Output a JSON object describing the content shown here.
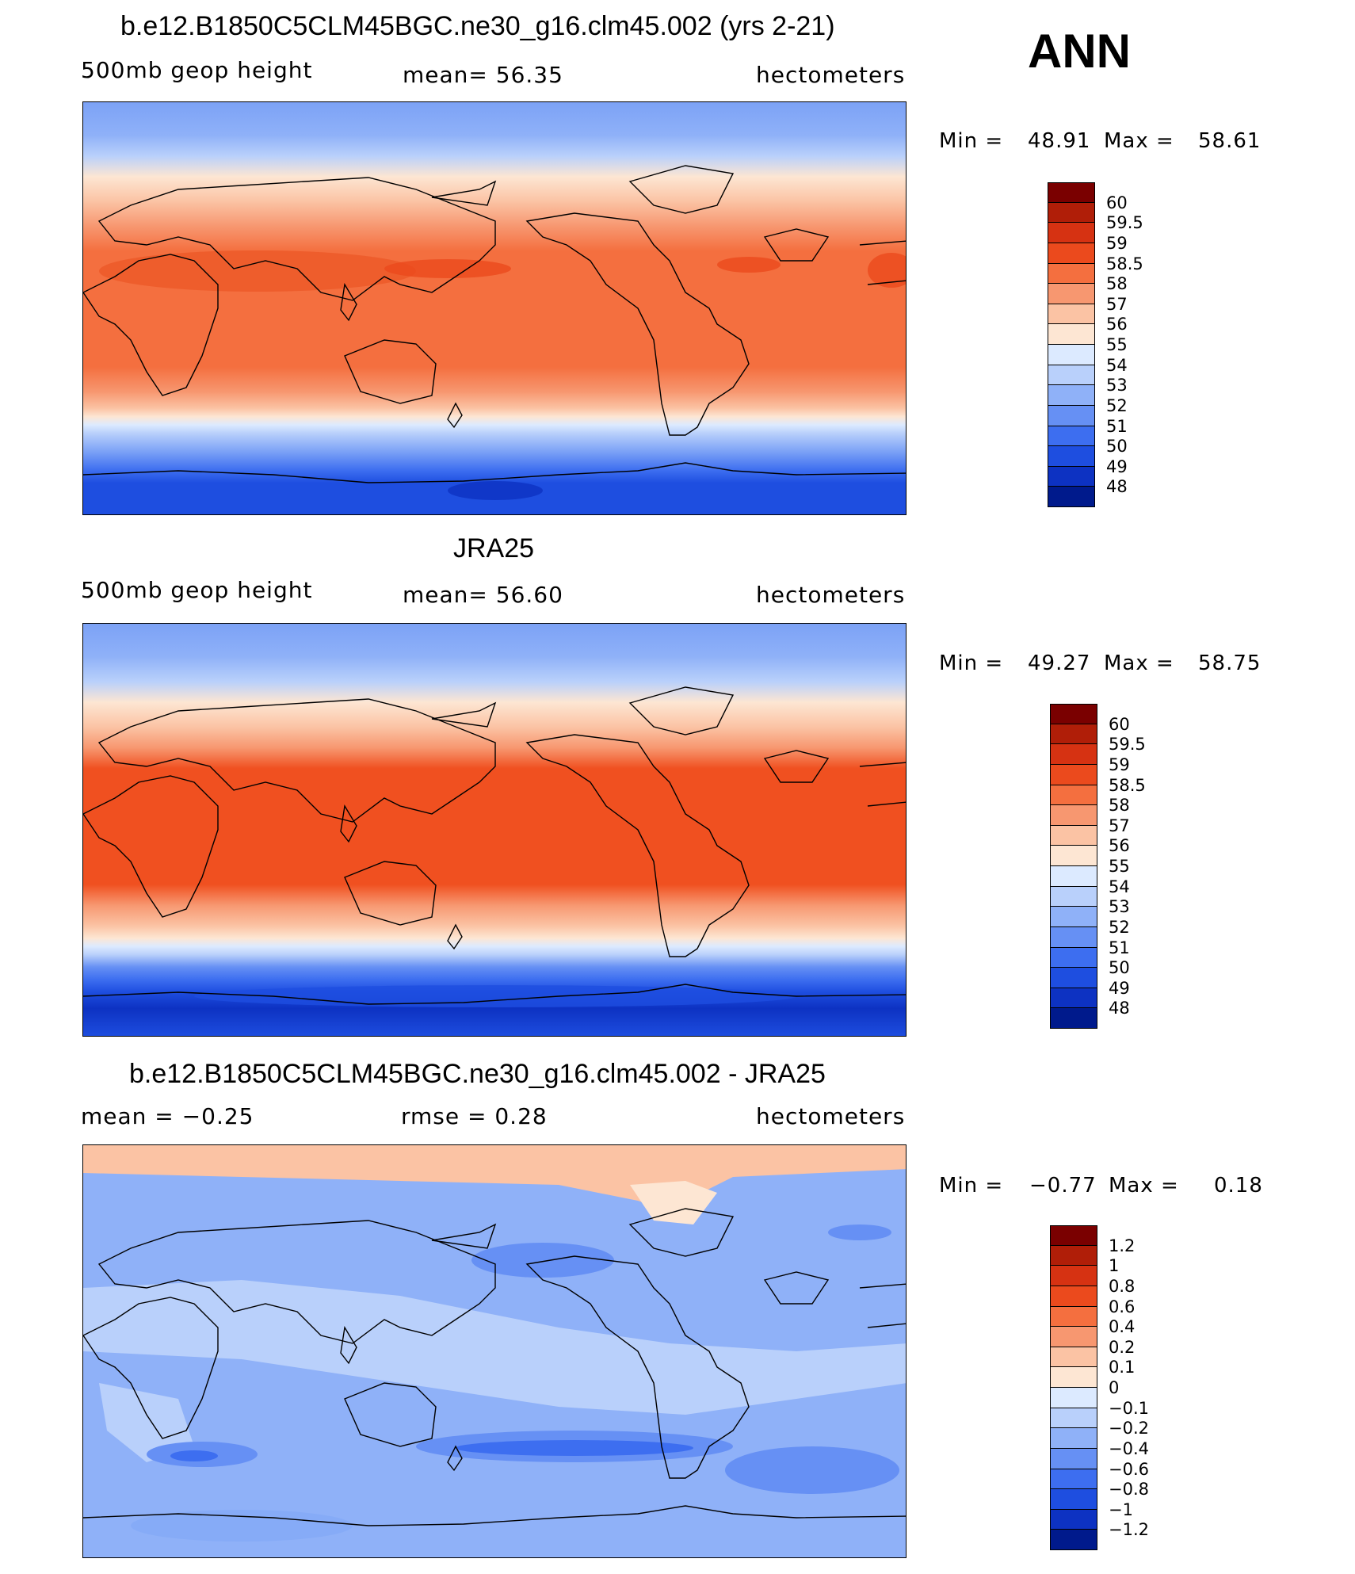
{
  "season": "ANN",
  "colors": {
    "warm_scale": [
      "#ffffff",
      "#fde8d6",
      "#fbc7a8",
      "#f79770",
      "#f57244",
      "#f05020",
      "#e03210",
      "#c02208",
      "#a51005",
      "#7a0000"
    ],
    "cool_scale": [
      "#dceaff",
      "#b6cdfb",
      "#8db0f8",
      "#6b95f5",
      "#4a78f0",
      "#2f5ee8",
      "#1c48d6",
      "#0f34bb",
      "#07209a",
      "#000e80"
    ],
    "coastline": "#000000"
  },
  "panels": [
    {
      "title": "b.e12.B1850C5CLM45BGC.ne30_g16.clm45.002 (yrs 2-21)",
      "left_label": "500mb geop height",
      "center_label": "mean=  56.35",
      "units": "hectometers",
      "min_label": "Min =",
      "min_value": "48.91",
      "max_label": "Max =",
      "max_value": "58.61",
      "colorbar_labels": [
        "60",
        "59.5",
        "59",
        "58.5",
        "58",
        "57",
        "56",
        "55",
        "54",
        "53",
        "52",
        "51",
        "50",
        "49",
        "48"
      ],
      "colorbar_colors": [
        "#7a0000",
        "#b01e08",
        "#d63212",
        "#eb4a1d",
        "#f46f3f",
        "#f79770",
        "#fbc3a4",
        "#fde6d3",
        "#dceaff",
        "#b9d0fb",
        "#8fb1f8",
        "#6690f4",
        "#3d6ef0",
        "#1e4ee0",
        "#0d32c2",
        "#001a8c"
      ]
    },
    {
      "title": "JRA25",
      "left_label": "500mb geop height",
      "center_label": "mean=  56.60",
      "units": "hectometers",
      "min_label": "Min =",
      "min_value": "49.27",
      "max_label": "Max =",
      "max_value": "58.75",
      "colorbar_labels": [
        "60",
        "59.5",
        "59",
        "58.5",
        "58",
        "57",
        "56",
        "55",
        "54",
        "53",
        "52",
        "51",
        "50",
        "49",
        "48"
      ],
      "colorbar_colors": [
        "#7a0000",
        "#b01e08",
        "#d63212",
        "#eb4a1d",
        "#f46f3f",
        "#f79770",
        "#fbc3a4",
        "#fde6d3",
        "#dceaff",
        "#b9d0fb",
        "#8fb1f8",
        "#6690f4",
        "#3d6ef0",
        "#1e4ee0",
        "#0d32c2",
        "#001a8c"
      ]
    },
    {
      "title": "b.e12.B1850C5CLM45BGC.ne30_g16.clm45.002 - JRA25",
      "left_label": "mean =  −0.25",
      "center_label": "rmse =   0.28",
      "units": "hectometers",
      "min_label": "Min =",
      "min_value": "−0.77",
      "max_label": "Max =",
      "max_value": "0.18",
      "colorbar_labels": [
        "1.2",
        "1",
        "0.8",
        "0.6",
        "0.4",
        "0.2",
        "0.1",
        "0",
        "−0.1",
        "−0.2",
        "−0.4",
        "−0.6",
        "−0.8",
        "−1",
        "−1.2"
      ],
      "colorbar_colors": [
        "#7a0000",
        "#b01e08",
        "#d63212",
        "#eb4a1d",
        "#f46f3f",
        "#f79770",
        "#fbc3a4",
        "#fde6d3",
        "#dceaff",
        "#b9d0fb",
        "#8fb1f8",
        "#6690f4",
        "#3d6ef0",
        "#1e4ee0",
        "#0d32c2",
        "#001a8c"
      ]
    }
  ]
}
